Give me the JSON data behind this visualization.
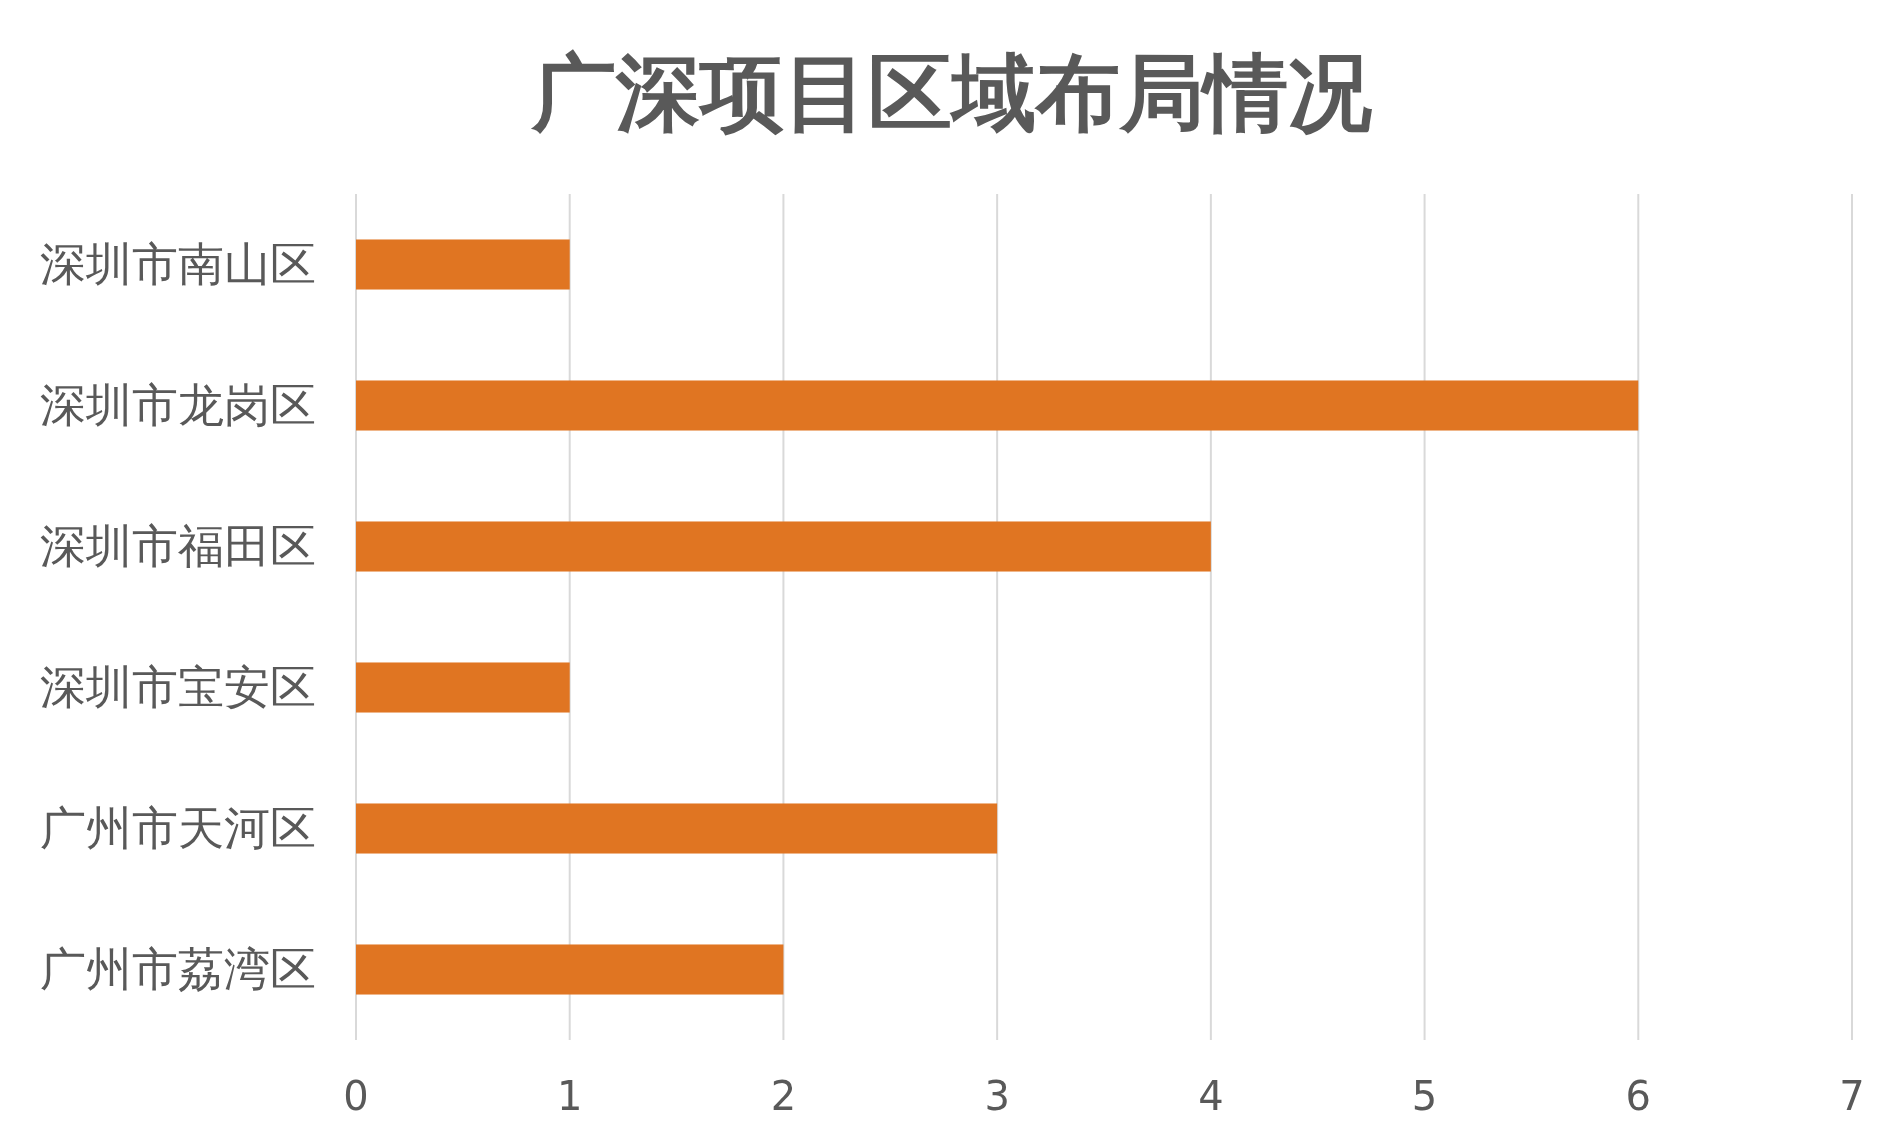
{
  "chart_data": {
    "type": "bar",
    "orientation": "horizontal",
    "title": "广深项目区域布局情况",
    "categories": [
      "深圳市南山区",
      "深圳市龙岗区",
      "深圳市福田区",
      "深圳市宝安区",
      "广州市天河区",
      "广州市荔湾区"
    ],
    "values": [
      1,
      6,
      4,
      1,
      3,
      2
    ],
    "color": "#e07522",
    "xlim": [
      0,
      7
    ],
    "xticks": [
      0,
      1,
      2,
      3,
      4,
      5,
      6,
      7
    ],
    "grid": "x"
  }
}
